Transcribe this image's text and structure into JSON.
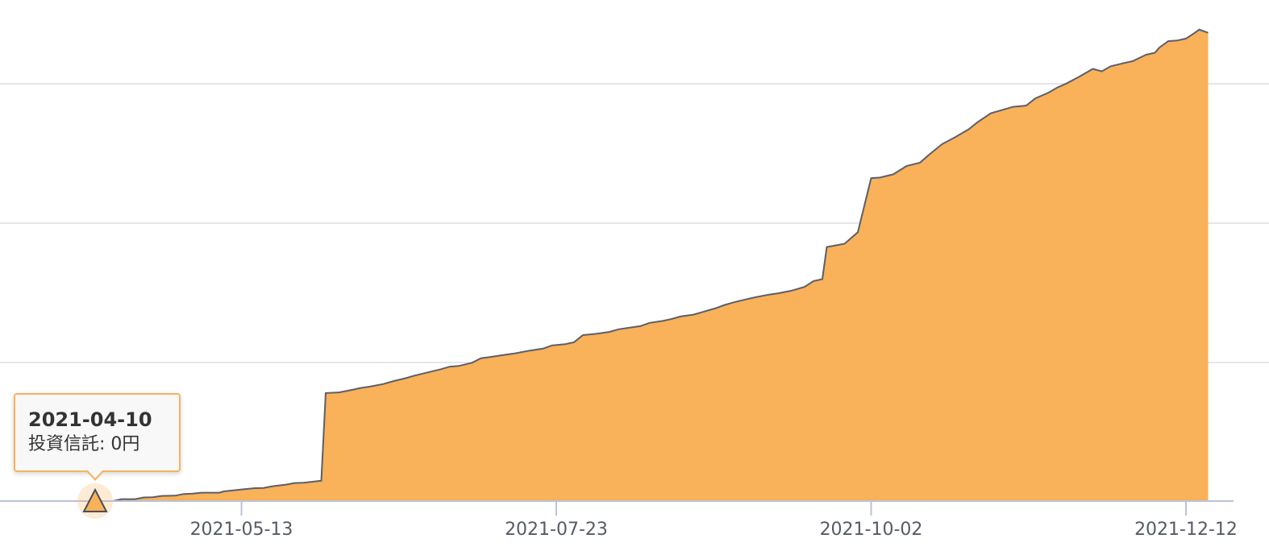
{
  "chart_data": {
    "type": "area",
    "x_start": "2021-04-10",
    "x_end": "2021-12-17",
    "x_ticks": [
      "2021-05-13",
      "2021-07-23",
      "2021-10-02",
      "2021-12-12"
    ],
    "grid": true,
    "series": [
      {
        "color": "#f9b15a",
        "line_color": "#5a5f6b",
        "points": [
          [
            "2021-04-10",
            0
          ],
          [
            "2021-04-14",
            0
          ],
          [
            "2021-04-16",
            1.5
          ],
          [
            "2021-04-19",
            1.5
          ],
          [
            "2021-04-21",
            2.8
          ],
          [
            "2021-04-23",
            3.0
          ],
          [
            "2021-04-25",
            4.0
          ],
          [
            "2021-04-28",
            4.2
          ],
          [
            "2021-04-30",
            5.5
          ],
          [
            "2021-05-02",
            5.8
          ],
          [
            "2021-05-04",
            6.5
          ],
          [
            "2021-05-08",
            6.5
          ],
          [
            "2021-05-09",
            7.5
          ],
          [
            "2021-05-13",
            9.0
          ],
          [
            "2021-05-16",
            10.0
          ],
          [
            "2021-05-18",
            10.2
          ],
          [
            "2021-05-20",
            11.5
          ],
          [
            "2021-05-23",
            12.8
          ],
          [
            "2021-05-25",
            14.0
          ],
          [
            "2021-05-27",
            14.2
          ],
          [
            "2021-05-29",
            15.0
          ],
          [
            "2021-05-31",
            15.8
          ],
          [
            "2021-06-01",
            84.0
          ],
          [
            "2021-06-04",
            84.5
          ],
          [
            "2021-06-07",
            86.5
          ],
          [
            "2021-06-09",
            88.0
          ],
          [
            "2021-06-11",
            89.0
          ],
          [
            "2021-06-14",
            91.0
          ],
          [
            "2021-06-16",
            93.0
          ],
          [
            "2021-06-19",
            95.5
          ],
          [
            "2021-06-21",
            97.5
          ],
          [
            "2021-06-24",
            100.0
          ],
          [
            "2021-06-27",
            102.5
          ],
          [
            "2021-06-29",
            104.5
          ],
          [
            "2021-07-01",
            105.0
          ],
          [
            "2021-07-04",
            107.5
          ],
          [
            "2021-07-06",
            111.0
          ],
          [
            "2021-07-08",
            112.0
          ],
          [
            "2021-07-11",
            113.5
          ],
          [
            "2021-07-14",
            115.0
          ],
          [
            "2021-07-17",
            117.0
          ],
          [
            "2021-07-20",
            118.5
          ],
          [
            "2021-07-22",
            121.0
          ],
          [
            "2021-07-25",
            122.0
          ],
          [
            "2021-07-27",
            123.5
          ],
          [
            "2021-07-29",
            129.0
          ],
          [
            "2021-08-01",
            130.0
          ],
          [
            "2021-08-04",
            131.5
          ],
          [
            "2021-08-06",
            133.5
          ],
          [
            "2021-08-09",
            135.0
          ],
          [
            "2021-08-11",
            136.0
          ],
          [
            "2021-08-13",
            138.5
          ],
          [
            "2021-08-16",
            140.0
          ],
          [
            "2021-08-18",
            141.5
          ],
          [
            "2021-08-20",
            143.5
          ],
          [
            "2021-08-23",
            145.0
          ],
          [
            "2021-08-25",
            147.0
          ],
          [
            "2021-08-28",
            150.0
          ],
          [
            "2021-08-30",
            152.5
          ],
          [
            "2021-09-01",
            154.5
          ],
          [
            "2021-09-04",
            157.0
          ],
          [
            "2021-09-06",
            158.5
          ],
          [
            "2021-09-09",
            160.5
          ],
          [
            "2021-09-11",
            161.5
          ],
          [
            "2021-09-14",
            163.5
          ],
          [
            "2021-09-17",
            166.5
          ],
          [
            "2021-09-19",
            171.0
          ],
          [
            "2021-09-21",
            172.5
          ],
          [
            "2021-09-22",
            197.5
          ],
          [
            "2021-09-26",
            200.0
          ],
          [
            "2021-09-29",
            209.0
          ],
          [
            "2021-10-02",
            251.0
          ],
          [
            "2021-10-04",
            251.5
          ],
          [
            "2021-10-07",
            254.0
          ],
          [
            "2021-10-10",
            260.5
          ],
          [
            "2021-10-13",
            263.0
          ],
          [
            "2021-10-15",
            269.0
          ],
          [
            "2021-10-18",
            277.5
          ],
          [
            "2021-10-21",
            283.0
          ],
          [
            "2021-10-24",
            289.0
          ],
          [
            "2021-10-26",
            294.5
          ],
          [
            "2021-10-29",
            301.5
          ],
          [
            "2021-11-01",
            304.5
          ],
          [
            "2021-11-03",
            306.5
          ],
          [
            "2021-11-06",
            307.5
          ],
          [
            "2021-11-08",
            313.0
          ],
          [
            "2021-11-11",
            317.5
          ],
          [
            "2021-11-13",
            321.5
          ],
          [
            "2021-11-15",
            324.5
          ],
          [
            "2021-11-18",
            330.0
          ],
          [
            "2021-11-21",
            336.0
          ],
          [
            "2021-11-23",
            334.0
          ],
          [
            "2021-11-25",
            338.0
          ],
          [
            "2021-11-28",
            340.5
          ],
          [
            "2021-11-30",
            342.0
          ],
          [
            "2021-12-03",
            347.0
          ],
          [
            "2021-12-05",
            348.5
          ],
          [
            "2021-12-06",
            352.5
          ],
          [
            "2021-12-08",
            357.5
          ],
          [
            "2021-12-10",
            358.0
          ],
          [
            "2021-12-12",
            359.5
          ],
          [
            "2021-12-14",
            364.0
          ],
          [
            "2021-12-15",
            366.5
          ],
          [
            "2021-12-17",
            364.0
          ]
        ]
      }
    ],
    "tooltip": {
      "date": "2021-04-10",
      "label": "投資信託: 0円"
    }
  }
}
